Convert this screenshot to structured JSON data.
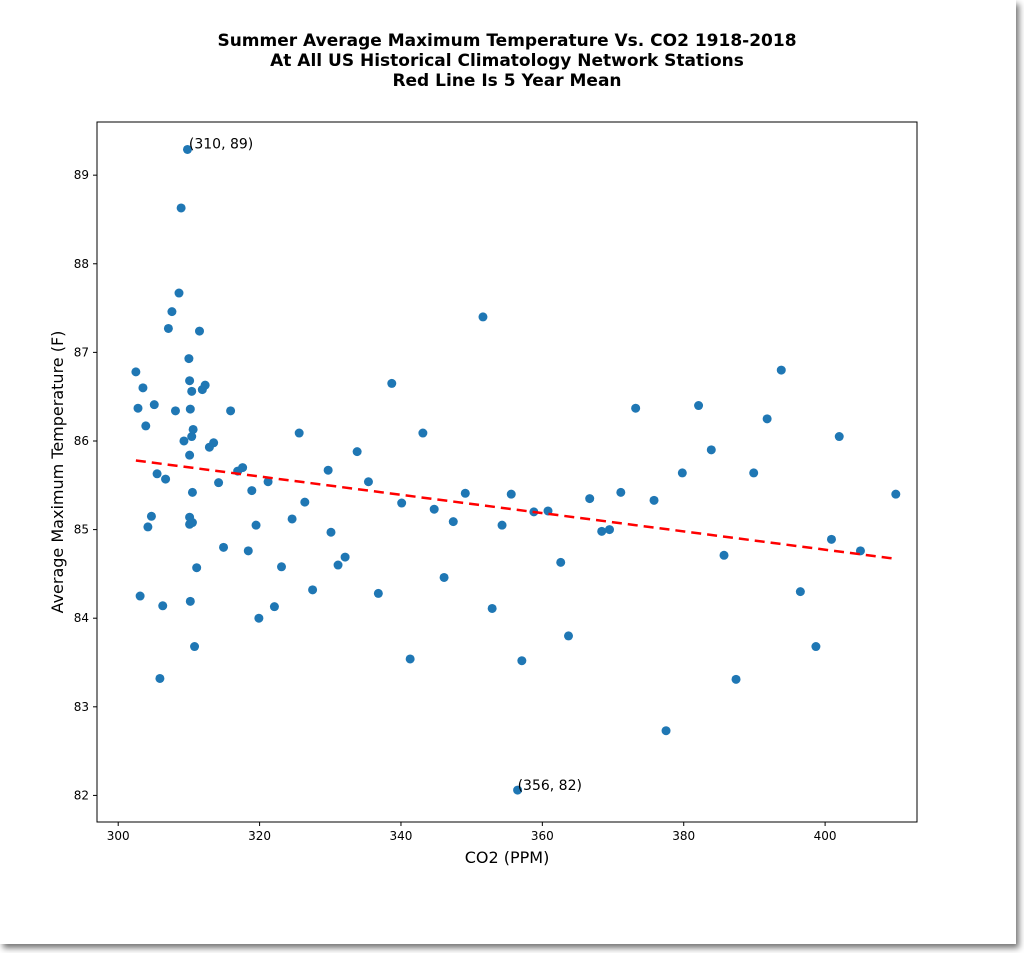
{
  "chart_data": {
    "type": "scatter",
    "title": [
      "Summer Average Maximum Temperature Vs. CO2 1918-2018",
      "At All US Historical Climatology Network Stations",
      "Red Line Is 5 Year Mean"
    ],
    "xlabel": "CO2 (PPM)",
    "ylabel": "Average Maximum Temperature (F)",
    "xlim": [
      297,
      413
    ],
    "ylim": [
      81.7,
      89.6
    ],
    "xticks": [
      300,
      320,
      340,
      360,
      380,
      400
    ],
    "yticks": [
      82,
      83,
      84,
      85,
      86,
      87,
      88,
      89
    ],
    "grid": false,
    "colors": {
      "points": "#1f77b4",
      "trend": "#ff0000"
    },
    "points": [
      [
        302.5,
        86.78
      ],
      [
        302.8,
        86.37
      ],
      [
        303.1,
        84.25
      ],
      [
        303.5,
        86.6
      ],
      [
        303.9,
        86.17
      ],
      [
        304.2,
        85.03
      ],
      [
        304.7,
        85.15
      ],
      [
        305.1,
        86.41
      ],
      [
        305.5,
        85.63
      ],
      [
        305.9,
        83.32
      ],
      [
        306.3,
        84.14
      ],
      [
        306.7,
        85.57
      ],
      [
        307.1,
        87.27
      ],
      [
        307.6,
        87.46
      ],
      [
        308.1,
        86.34
      ],
      [
        308.6,
        87.67
      ],
      [
        308.9,
        88.63
      ],
      [
        309.3,
        86.0
      ],
      [
        309.8,
        89.29
      ],
      [
        310.0,
        86.93
      ],
      [
        310.1,
        86.68
      ],
      [
        310.1,
        85.84
      ],
      [
        310.1,
        85.14
      ],
      [
        310.1,
        85.06
      ],
      [
        310.2,
        84.19
      ],
      [
        310.2,
        86.36
      ],
      [
        310.4,
        86.56
      ],
      [
        310.4,
        86.05
      ],
      [
        310.5,
        85.42
      ],
      [
        310.5,
        85.08
      ],
      [
        310.6,
        86.13
      ],
      [
        310.8,
        83.68
      ],
      [
        311.1,
        84.57
      ],
      [
        311.5,
        87.24
      ],
      [
        311.9,
        86.58
      ],
      [
        312.3,
        86.63
      ],
      [
        312.9,
        85.93
      ],
      [
        313.5,
        85.98
      ],
      [
        314.2,
        85.53
      ],
      [
        314.9,
        84.8
      ],
      [
        315.9,
        86.34
      ],
      [
        316.9,
        85.66
      ],
      [
        317.6,
        85.7
      ],
      [
        318.4,
        84.76
      ],
      [
        318.9,
        85.44
      ],
      [
        319.5,
        85.05
      ],
      [
        319.9,
        84.0
      ],
      [
        321.2,
        85.54
      ],
      [
        322.1,
        84.13
      ],
      [
        323.1,
        84.58
      ],
      [
        324.6,
        85.12
      ],
      [
        325.6,
        86.09
      ],
      [
        326.4,
        85.31
      ],
      [
        327.5,
        84.32
      ],
      [
        329.7,
        85.67
      ],
      [
        330.1,
        84.97
      ],
      [
        331.1,
        84.6
      ],
      [
        332.1,
        84.69
      ],
      [
        333.8,
        85.88
      ],
      [
        335.4,
        85.54
      ],
      [
        336.8,
        84.28
      ],
      [
        338.7,
        86.65
      ],
      [
        340.1,
        85.3
      ],
      [
        341.3,
        83.54
      ],
      [
        343.1,
        86.09
      ],
      [
        344.7,
        85.23
      ],
      [
        346.1,
        84.46
      ],
      [
        347.4,
        85.09
      ],
      [
        349.1,
        85.41
      ],
      [
        351.6,
        87.4
      ],
      [
        352.9,
        84.11
      ],
      [
        354.3,
        85.05
      ],
      [
        355.6,
        85.4
      ],
      [
        356.5,
        82.06
      ],
      [
        357.1,
        83.52
      ],
      [
        358.8,
        85.2
      ],
      [
        360.8,
        85.21
      ],
      [
        362.6,
        84.63
      ],
      [
        363.7,
        83.8
      ],
      [
        366.7,
        85.35
      ],
      [
        368.4,
        84.98
      ],
      [
        369.5,
        85.0
      ],
      [
        371.1,
        85.42
      ],
      [
        373.2,
        86.37
      ],
      [
        375.8,
        85.33
      ],
      [
        377.5,
        82.73
      ],
      [
        379.8,
        85.64
      ],
      [
        382.1,
        86.4
      ],
      [
        383.9,
        85.9
      ],
      [
        385.7,
        84.71
      ],
      [
        387.4,
        83.31
      ],
      [
        389.9,
        85.64
      ],
      [
        391.8,
        86.25
      ],
      [
        393.8,
        86.8
      ],
      [
        396.5,
        84.3
      ],
      [
        398.7,
        83.68
      ],
      [
        400.9,
        84.89
      ],
      [
        402.0,
        86.05
      ],
      [
        405.0,
        84.76
      ],
      [
        410.0,
        85.4
      ]
    ],
    "trend_line": {
      "style": "dashed",
      "x": [
        302.5,
        410.0
      ],
      "y": [
        85.78,
        84.67
      ]
    },
    "annotations": [
      {
        "text": "(310, 89)",
        "x": 310.0,
        "y": 89.3
      },
      {
        "text": "(356, 82)",
        "x": 356.5,
        "y": 82.06
      }
    ]
  }
}
